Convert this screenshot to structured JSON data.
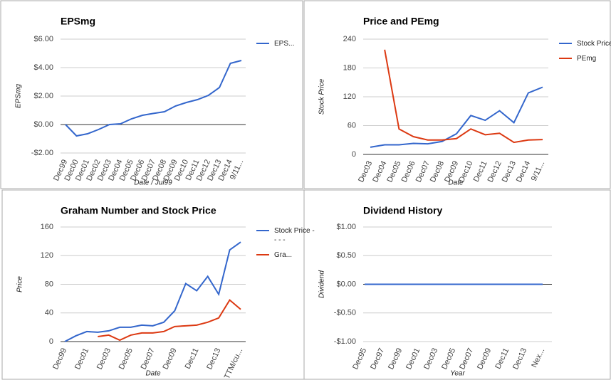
{
  "chart_data": [
    {
      "type": "line",
      "title": "EPSmg",
      "y_label": "EPSmg",
      "x_label": "Date / Jul99",
      "categories": [
        "Dec99",
        "Dec00",
        "Dec01",
        "Dec02",
        "Dec03",
        "Dec04",
        "Dec05",
        "Dec06",
        "Dec07",
        "Dec08",
        "Dec09",
        "Dec10",
        "Dec11",
        "Dec12",
        "Dec13",
        "Dec14",
        "9/11..."
      ],
      "series": [
        {
          "name": "EPS...",
          "color": "#3366cc",
          "values": [
            0,
            -0.8,
            -0.65,
            -0.35,
            0,
            0.05,
            0.4,
            0.65,
            0.78,
            0.9,
            1.3,
            1.55,
            1.75,
            2.05,
            2.6,
            4.3,
            4.5
          ]
        }
      ],
      "ylim": [
        -2,
        6
      ],
      "yticks": [
        {
          "value": -2,
          "label": "-$2.00"
        },
        {
          "value": 0,
          "label": "$0.00"
        },
        {
          "value": 2,
          "label": "$2.00"
        },
        {
          "value": 4,
          "label": "$4.00"
        },
        {
          "value": 6,
          "label": "$6.00"
        }
      ],
      "grid": true
    },
    {
      "type": "line",
      "title": "Price and PEmg",
      "y_label": "Stock Price",
      "x_label": "Date",
      "categories": [
        "Dec03",
        "Dec04",
        "Dec05",
        "Dec06",
        "Dec07",
        "Dec08",
        "Dec09",
        "Dec10",
        "Dec11",
        "Dec12",
        "Dec13",
        "Dec14",
        "9/11..."
      ],
      "series": [
        {
          "name": "Stock Price",
          "color": "#3366cc",
          "values": [
            15,
            20,
            20,
            23,
            22,
            27,
            43,
            81,
            71,
            91,
            66,
            128,
            140
          ]
        },
        {
          "name": "PEmg",
          "color": "#dc3912",
          "values": [
            null,
            218,
            53,
            37,
            30,
            30,
            33,
            53,
            41,
            44,
            25,
            30,
            31
          ]
        }
      ],
      "ylim": [
        0,
        240
      ],
      "yticks": [
        0,
        60,
        120,
        180,
        240
      ],
      "grid": true
    },
    {
      "type": "line",
      "title": "Graham Number and Stock Price",
      "y_label": "Price",
      "x_label": "Date",
      "categories": [
        "Dec99",
        null,
        "Dec01",
        null,
        "Dec03",
        null,
        "Dec05",
        null,
        "Dec07",
        null,
        "Dec09",
        null,
        "Dec11",
        null,
        "Dec13",
        null,
        "TTM/cu..."
      ],
      "series": [
        {
          "name": "Stock Price - - - -",
          "color": "#3366cc",
          "values": [
            0,
            8,
            14,
            13,
            15,
            20,
            20,
            23,
            22,
            27,
            43,
            81,
            71,
            91,
            66,
            128,
            139
          ]
        },
        {
          "name": "Gra...",
          "color": "#dc3912",
          "values": [
            null,
            null,
            null,
            7,
            9,
            2,
            9,
            12,
            12,
            14,
            21,
            22,
            23,
            27,
            33,
            58,
            45
          ]
        }
      ],
      "ylim": [
        0,
        160
      ],
      "yticks": [
        0,
        40,
        80,
        120,
        160
      ],
      "grid": true
    },
    {
      "type": "line",
      "title": "Dividend History",
      "y_label": "Dividend",
      "x_label": "Year",
      "categories": [
        "Dec95",
        "Dec97",
        "Dec99",
        "Dec01",
        "Dec03",
        "Dec05",
        "Dec07",
        "Dec09",
        "Dec11",
        "Dec13",
        "Nex..."
      ],
      "series": [
        {
          "color": "#3366cc",
          "values": [
            0,
            0,
            0,
            0,
            0,
            0,
            0,
            0,
            0,
            0,
            0
          ]
        }
      ],
      "ylim": [
        -1,
        1
      ],
      "yticks": [
        {
          "value": -1,
          "label": "-$1.00"
        },
        {
          "value": -0.5,
          "label": "-$0.50"
        },
        {
          "value": 0,
          "label": "$0.00"
        },
        {
          "value": 0.5,
          "label": "$0.50"
        },
        {
          "value": 1,
          "label": "$1.00"
        }
      ],
      "grid": true
    }
  ]
}
